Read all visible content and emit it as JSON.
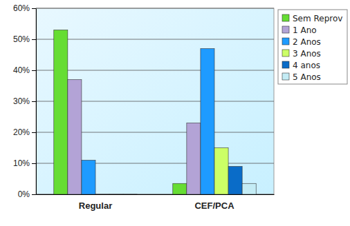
{
  "chart_data": {
    "type": "bar",
    "categories": [
      "Regular",
      "CEF/PCA"
    ],
    "series": [
      {
        "name": "Sem Reprov",
        "color": "#66dd33",
        "values": [
          53,
          3.5
        ]
      },
      {
        "name": "1 Ano",
        "color": "#b3a3d6",
        "values": [
          37,
          23
        ]
      },
      {
        "name": "2 Anos",
        "color": "#1e9bff",
        "values": [
          11,
          47
        ]
      },
      {
        "name": "3 Anos",
        "color": "#ccff66",
        "values": [
          0,
          15
        ]
      },
      {
        "name": "4 anos",
        "color": "#0a6cc8",
        "values": [
          0,
          9
        ]
      },
      {
        "name": "5 Anos",
        "color": "#c4ecf5",
        "values": [
          0,
          3.5
        ]
      }
    ],
    "ylim": [
      0,
      60
    ],
    "yticks": [
      {
        "value": 0,
        "label": "0%"
      },
      {
        "value": 10,
        "label": "10%"
      },
      {
        "value": 20,
        "label": "20%"
      },
      {
        "value": 30,
        "label": "30%"
      },
      {
        "value": 40,
        "label": "40%"
      },
      {
        "value": 50,
        "label": "50%"
      },
      {
        "value": 60,
        "label": "60%"
      }
    ],
    "grid": true,
    "legend": "top-right"
  }
}
